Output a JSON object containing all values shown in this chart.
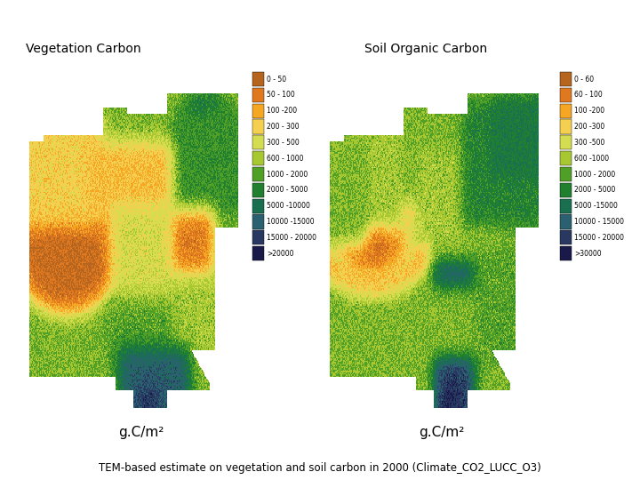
{
  "title_left": "Vegetation Carbon",
  "title_right": "Soil Organic Carbon",
  "unit_label": "g.C/m²",
  "bottom_text": "TEM-based estimate on vegetation and soil carbon in 2000 (Climate_CO2_LUCC_O3)",
  "legend_labels_veg": [
    "0 - 50",
    "50 - 100",
    "100 -200",
    "200 - 300",
    "300 - 500",
    "600 - 1000",
    "1000 - 2000",
    "2000 - 5000",
    "5000 -10000",
    "10000 -15000",
    "15000 - 20000",
    ">20000"
  ],
  "legend_labels_soil": [
    "0 - 60",
    "60 - 100",
    "100 -200",
    "200 -300",
    "300 -500",
    "600 -1000",
    "1000 - 2000",
    "2000 - 5000",
    "5000 -15000",
    "10000 - 15000",
    "15000 - 20000",
    ">30000"
  ],
  "legend_colors": [
    "#b5651d",
    "#e07820",
    "#f5a623",
    "#f5d050",
    "#d4dc50",
    "#a8c832",
    "#50a028",
    "#208030",
    "#187050",
    "#2a6070",
    "#283860",
    "#1a1a4a"
  ],
  "background_color": "#ffffff",
  "fig_width": 7.2,
  "fig_height": 5.4
}
